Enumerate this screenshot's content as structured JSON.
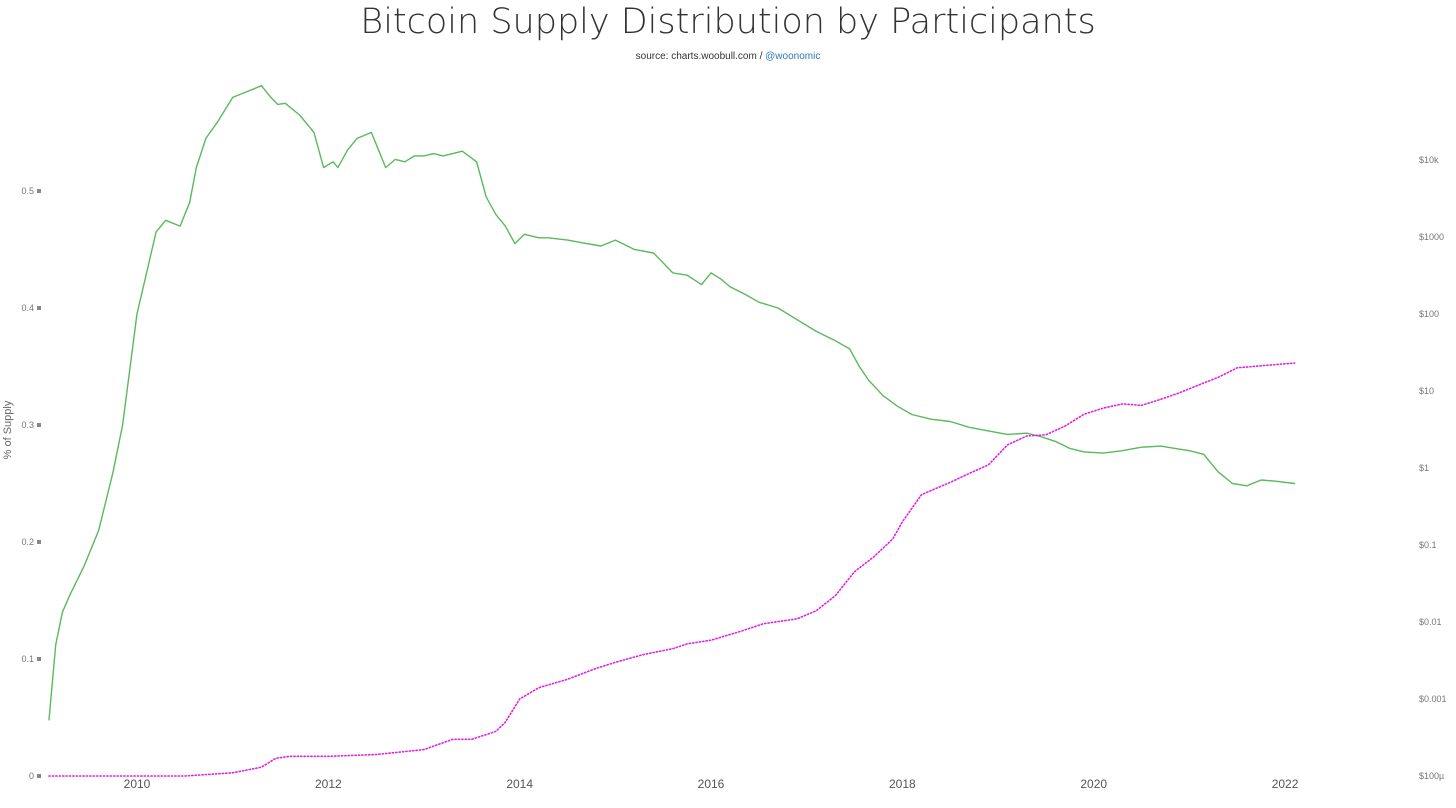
{
  "chart_data": {
    "type": "line",
    "title": "Bitcoin Supply Distribution by Participants",
    "subtitle": {
      "source_prefix": "source: charts.woobull.com / ",
      "handle": "@woonomic"
    },
    "ylabel": "% of Supply",
    "ylim": [
      0,
      0.6
    ],
    "y_ticks": [
      {
        "value": 0,
        "label": "0"
      },
      {
        "value": 0.1,
        "label": "0.1"
      },
      {
        "value": 0.2,
        "label": "0.2"
      },
      {
        "value": 0.3,
        "label": "0.3"
      },
      {
        "value": 0.4,
        "label": "0.4"
      },
      {
        "value": 0.5,
        "label": "0.5"
      }
    ],
    "y2_scale": "log",
    "y2lim": [
      0.0001,
      100000
    ],
    "y2_ticks": [
      {
        "value": 0.0001,
        "label": "$100µ"
      },
      {
        "value": 0.001,
        "label": "$0.001"
      },
      {
        "value": 0.01,
        "label": "$0.01"
      },
      {
        "value": 0.1,
        "label": "$0.1"
      },
      {
        "value": 1,
        "label": "$1"
      },
      {
        "value": 10,
        "label": "$10"
      },
      {
        "value": 100,
        "label": "$100"
      },
      {
        "value": 1000,
        "label": "$1000"
      },
      {
        "value": 10000,
        "label": "$10k"
      }
    ],
    "xlim": [
      2009.0,
      2022.35
    ],
    "x_ticks": [
      {
        "value": 2010,
        "label": "2010"
      },
      {
        "value": 2012,
        "label": "2012"
      },
      {
        "value": 2014,
        "label": "2014"
      },
      {
        "value": 2016,
        "label": "2016"
      },
      {
        "value": 2018,
        "label": "2018"
      },
      {
        "value": 2020,
        "label": "2020"
      },
      {
        "value": 2022,
        "label": "2022"
      }
    ],
    "grid": false,
    "series": [
      {
        "color": "#5cb85c",
        "style": "solid",
        "axis": "left",
        "x": [
          2009.08,
          2009.15,
          2009.22,
          2009.3,
          2009.45,
          2009.6,
          2009.75,
          2009.85,
          2010.0,
          2010.1,
          2010.2,
          2010.3,
          2010.45,
          2010.55,
          2010.62,
          2010.72,
          2010.85,
          2011.0,
          2011.15,
          2011.3,
          2011.4,
          2011.47,
          2011.55,
          2011.7,
          2011.85,
          2011.95,
          2012.05,
          2012.1,
          2012.2,
          2012.3,
          2012.45,
          2012.6,
          2012.7,
          2012.8,
          2012.9,
          2013.0,
          2013.1,
          2013.2,
          2013.3,
          2013.4,
          2013.55,
          2013.65,
          2013.75,
          2013.85,
          2013.95,
          2014.05,
          2014.2,
          2014.3,
          2014.5,
          2014.7,
          2014.85,
          2015.0,
          2015.2,
          2015.4,
          2015.6,
          2015.75,
          2015.9,
          2016.0,
          2016.1,
          2016.2,
          2016.35,
          2016.5,
          2016.7,
          2016.9,
          2017.1,
          2017.3,
          2017.45,
          2017.55,
          2017.65,
          2017.8,
          2017.95,
          2018.1,
          2018.3,
          2018.5,
          2018.7,
          2018.9,
          2019.1,
          2019.3,
          2019.45,
          2019.6,
          2019.75,
          2019.9,
          2020.1,
          2020.3,
          2020.5,
          2020.7,
          2020.85,
          2021.0,
          2021.15,
          2021.3,
          2021.45,
          2021.6,
          2021.75,
          2021.9,
          2022.1
        ],
        "values": [
          0.048,
          0.112,
          0.14,
          0.155,
          0.18,
          0.21,
          0.26,
          0.3,
          0.395,
          0.43,
          0.465,
          0.475,
          0.47,
          0.49,
          0.52,
          0.545,
          0.56,
          0.58,
          0.585,
          0.59,
          0.58,
          0.574,
          0.575,
          0.565,
          0.55,
          0.52,
          0.525,
          0.52,
          0.535,
          0.545,
          0.55,
          0.52,
          0.527,
          0.525,
          0.53,
          0.53,
          0.532,
          0.53,
          0.532,
          0.534,
          0.525,
          0.495,
          0.48,
          0.47,
          0.455,
          0.463,
          0.46,
          0.46,
          0.458,
          0.455,
          0.453,
          0.458,
          0.45,
          0.447,
          0.43,
          0.428,
          0.42,
          0.43,
          0.425,
          0.418,
          0.412,
          0.405,
          0.4,
          0.39,
          0.38,
          0.372,
          0.365,
          0.35,
          0.338,
          0.325,
          0.316,
          0.309,
          0.305,
          0.303,
          0.298,
          0.295,
          0.292,
          0.293,
          0.29,
          0.286,
          0.28,
          0.277,
          0.276,
          0.278,
          0.281,
          0.282,
          0.28,
          0.278,
          0.275,
          0.26,
          0.25,
          0.248,
          0.253,
          0.252,
          0.25
        ]
      },
      {
        "color": "#e020e0",
        "style": "dotted",
        "axis": "right",
        "x": [
          2009.08,
          2010.5,
          2011.0,
          2011.3,
          2011.45,
          2011.6,
          2012.0,
          2012.5,
          2013.0,
          2013.3,
          2013.5,
          2013.75,
          2013.85,
          2014.0,
          2014.2,
          2014.5,
          2014.8,
          2015.0,
          2015.3,
          2015.6,
          2015.75,
          2016.0,
          2016.3,
          2016.55,
          2016.9,
          2017.1,
          2017.3,
          2017.5,
          2017.7,
          2017.9,
          2018.0,
          2018.2,
          2018.5,
          2018.7,
          2018.9,
          2019.1,
          2019.3,
          2019.5,
          2019.7,
          2019.9,
          2020.1,
          2020.3,
          2020.5,
          2020.7,
          2020.9,
          2021.1,
          2021.3,
          2021.5,
          2021.7,
          2021.9,
          2022.1
        ],
        "values": [
          0.0001,
          0.0001,
          0.00011,
          0.00013,
          0.00017,
          0.00018,
          0.00018,
          0.00019,
          0.00022,
          0.0003,
          0.0003,
          0.00038,
          0.0005,
          0.001,
          0.0014,
          0.0018,
          0.0025,
          0.003,
          0.0038,
          0.0045,
          0.0052,
          0.0058,
          0.0075,
          0.0095,
          0.011,
          0.014,
          0.022,
          0.045,
          0.07,
          0.12,
          0.2,
          0.45,
          0.65,
          0.85,
          1.1,
          2.0,
          2.6,
          2.7,
          3.5,
          5.0,
          6.0,
          6.8,
          6.5,
          7.8,
          9.5,
          12.0,
          15.0,
          20.0,
          21.0,
          22.0,
          23.0
        ]
      }
    ]
  }
}
